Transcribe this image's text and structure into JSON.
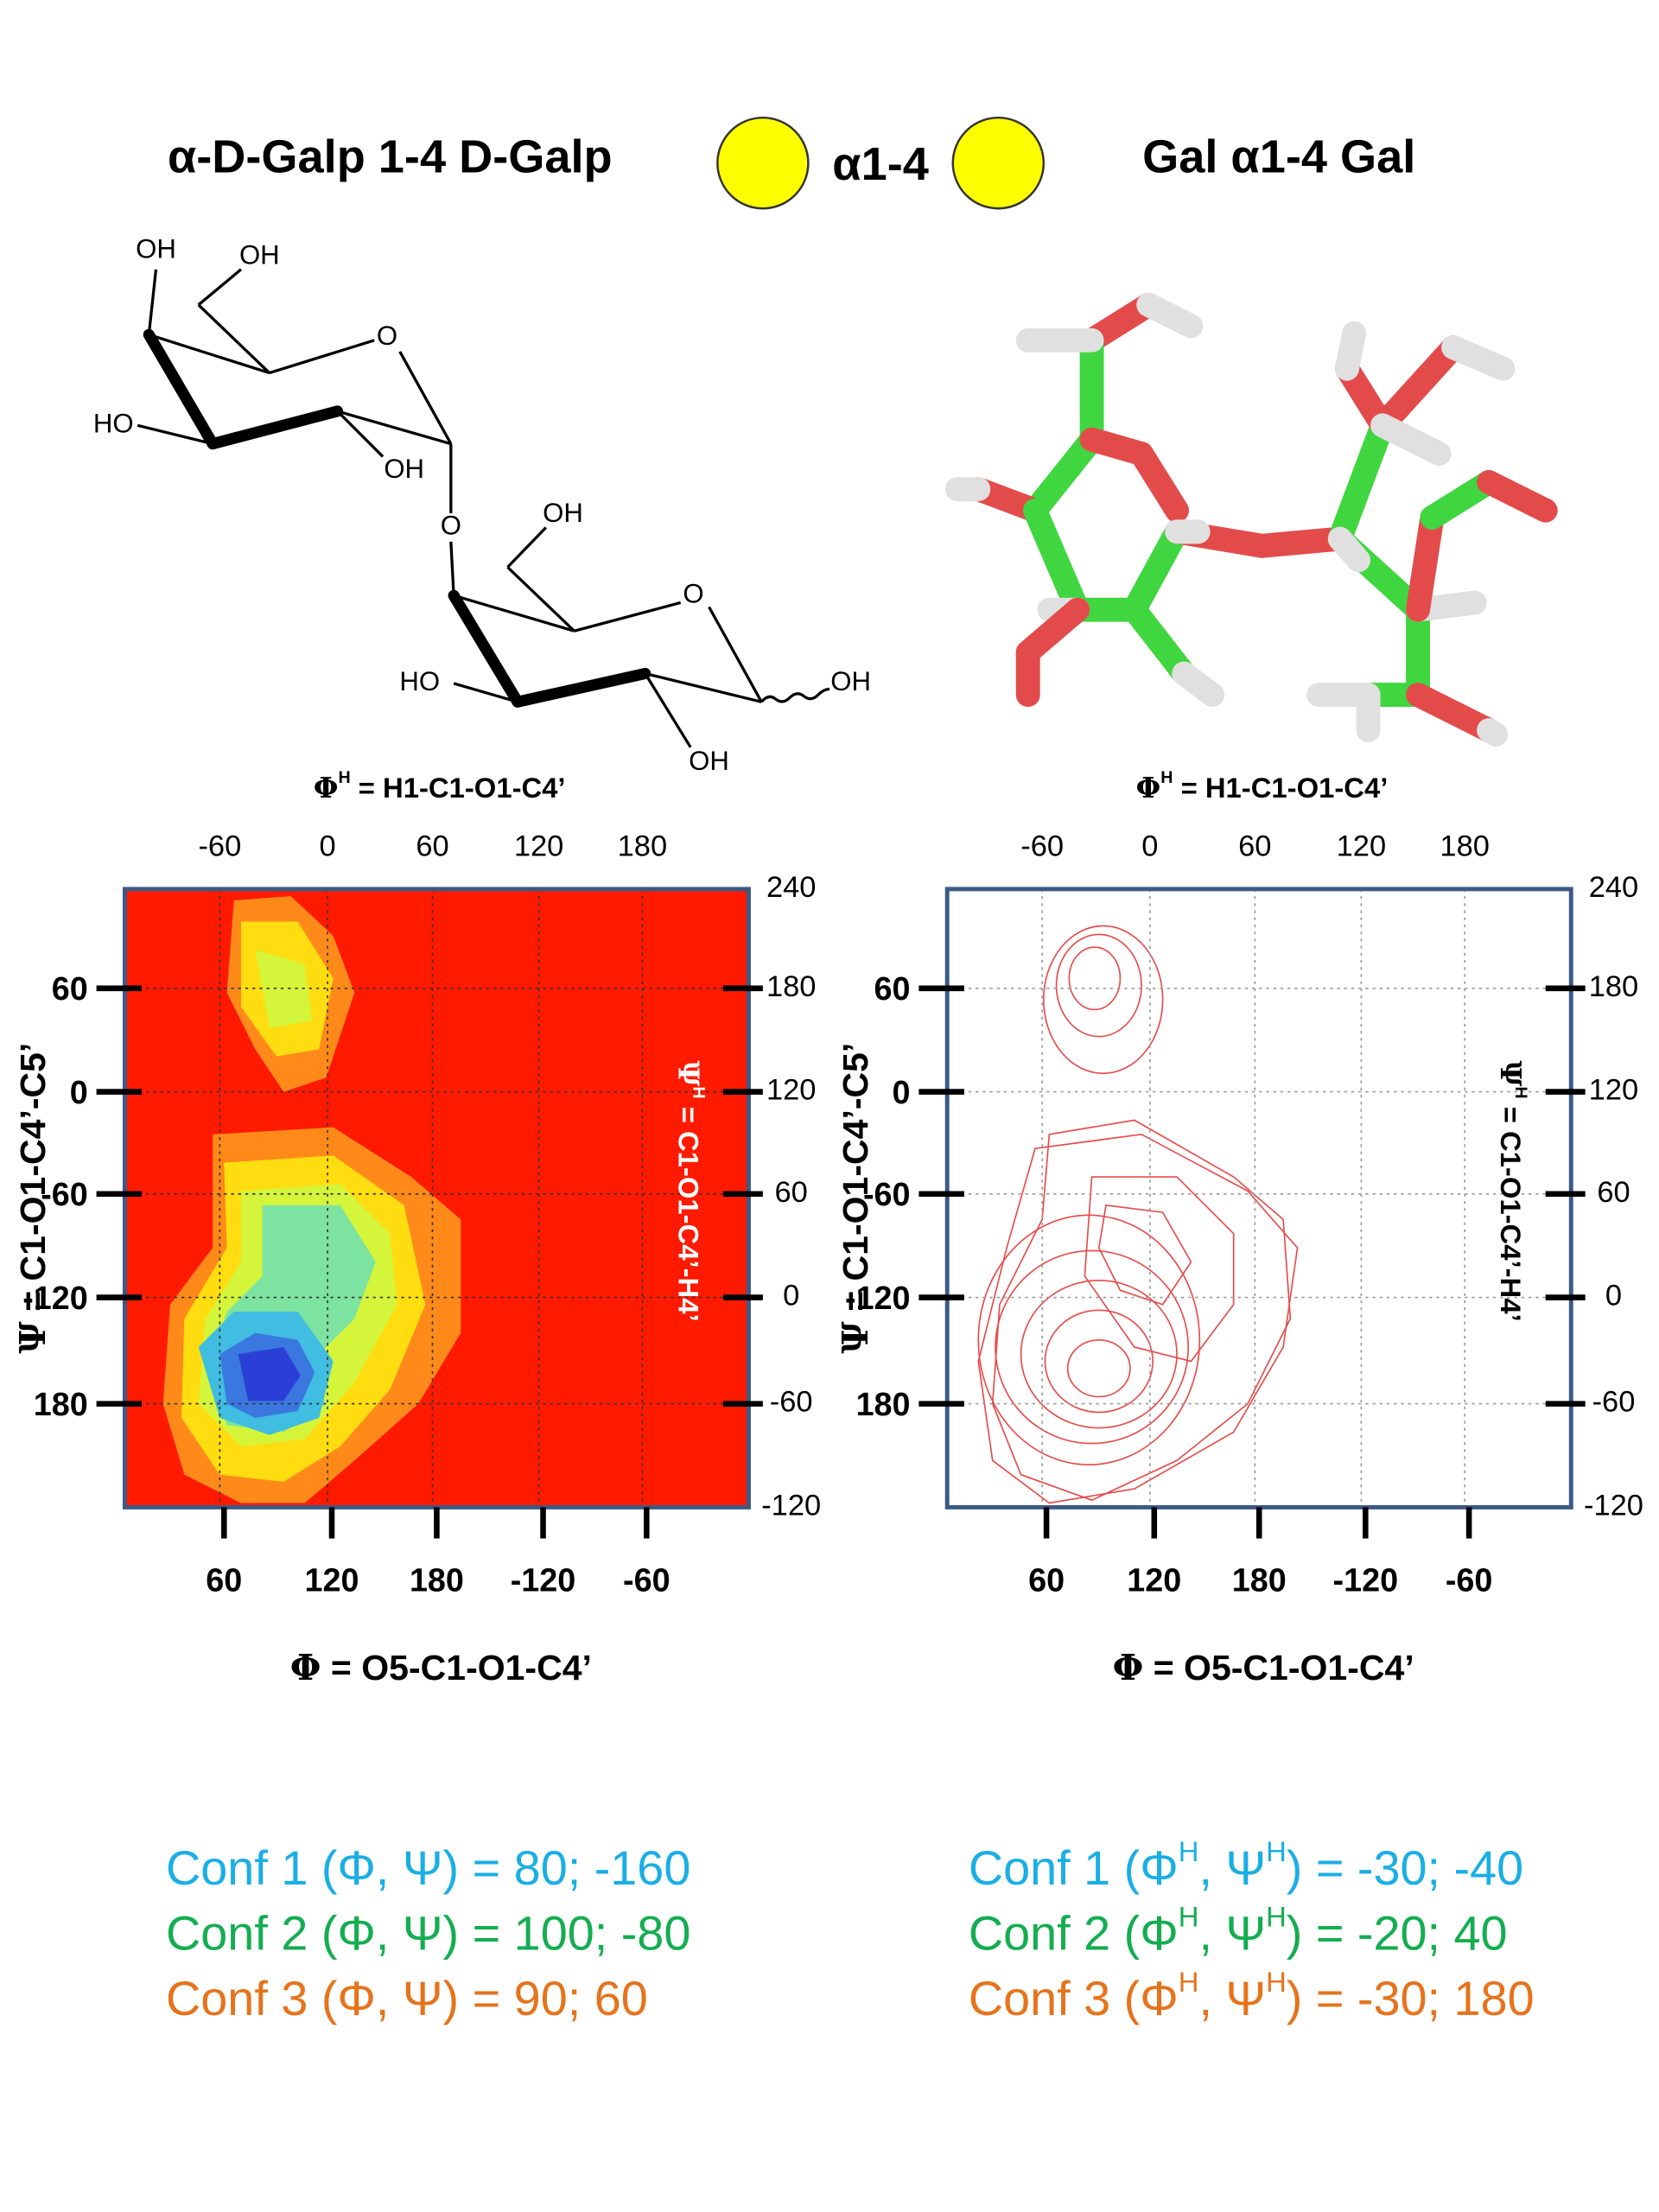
{
  "header": {
    "left": "α-D-Galp 1-4 D-Galp",
    "linkage": "α1-4",
    "right": "Gal α1-4 Gal"
  },
  "structure_labels": [
    "OH",
    "OH",
    "O",
    "HO",
    "OH",
    "O",
    "OH",
    "O",
    "HO",
    "OH",
    "OH"
  ],
  "plots": [
    {
      "top_label": {
        "symbol": "Φ",
        "sup": "H",
        "rest": " = H1-C1-O1-C4’"
      },
      "top_ticks": [
        -60,
        0,
        60,
        120,
        180
      ],
      "right_ticks": [
        240,
        180,
        120,
        60,
        0,
        -60,
        -120
      ],
      "left_ticks": [
        60,
        0,
        -60,
        -120,
        180
      ],
      "bottom_ticks": [
        60,
        120,
        180,
        -120,
        -60
      ],
      "x_label": {
        "symbol": "Φ",
        "rest": " = O5-C1-O1-C4’"
      },
      "y_label": {
        "symbol": "Ψ",
        "rest": " = C1-O1-C4’-C5’"
      },
      "y2_label": {
        "symbol": "Ψ",
        "sup": "H",
        "rest": " = C1-O1-C4’-H4’"
      }
    },
    {
      "top_label": {
        "symbol": "Φ",
        "sup": "H",
        "rest": " = H1-C1-O1-C4’"
      },
      "top_ticks": [
        -60,
        0,
        60,
        120,
        180
      ],
      "right_ticks": [
        240,
        180,
        120,
        60,
        0,
        -60,
        -120
      ],
      "left_ticks": [
        60,
        0,
        -60,
        -120,
        180
      ],
      "bottom_ticks": [
        60,
        120,
        180,
        -120,
        -60
      ],
      "x_label": {
        "symbol": "Φ",
        "rest": " = O5-C1-O1-C4’"
      },
      "y_label": {
        "symbol": "Ψ",
        "rest": " = C1-O1-C4’-C5’"
      },
      "y2_label": {
        "symbol": "Ψ",
        "sup": "H",
        "rest": " = C1-O1-C4’-H4’"
      }
    }
  ],
  "conformations": {
    "left": [
      {
        "color": "#1aaee5",
        "segments": [
          "Conf 1 (Φ, Ψ) = 80; -160"
        ]
      },
      {
        "color": "#14ad50",
        "segments": [
          "Conf 2 (Φ, Ψ) = 100; -80"
        ]
      },
      {
        "color": "#e6731c",
        "segments": [
          "Conf 3 (Φ, Ψ) = 90; 60"
        ]
      }
    ],
    "right": [
      {
        "color": "#1aaee5",
        "segments": [
          "Conf 1 (Φ",
          "H",
          ", Ψ",
          "H",
          ") = -30; -40"
        ]
      },
      {
        "color": "#14ad50",
        "segments": [
          "Conf 2 (Φ",
          "H",
          ", Ψ",
          "H",
          ") = -20; 40"
        ]
      },
      {
        "color": "#e6731c",
        "segments": [
          "Conf 3 (Φ",
          "H",
          ", Ψ",
          "H",
          ") = -30; 180"
        ]
      }
    ]
  }
}
